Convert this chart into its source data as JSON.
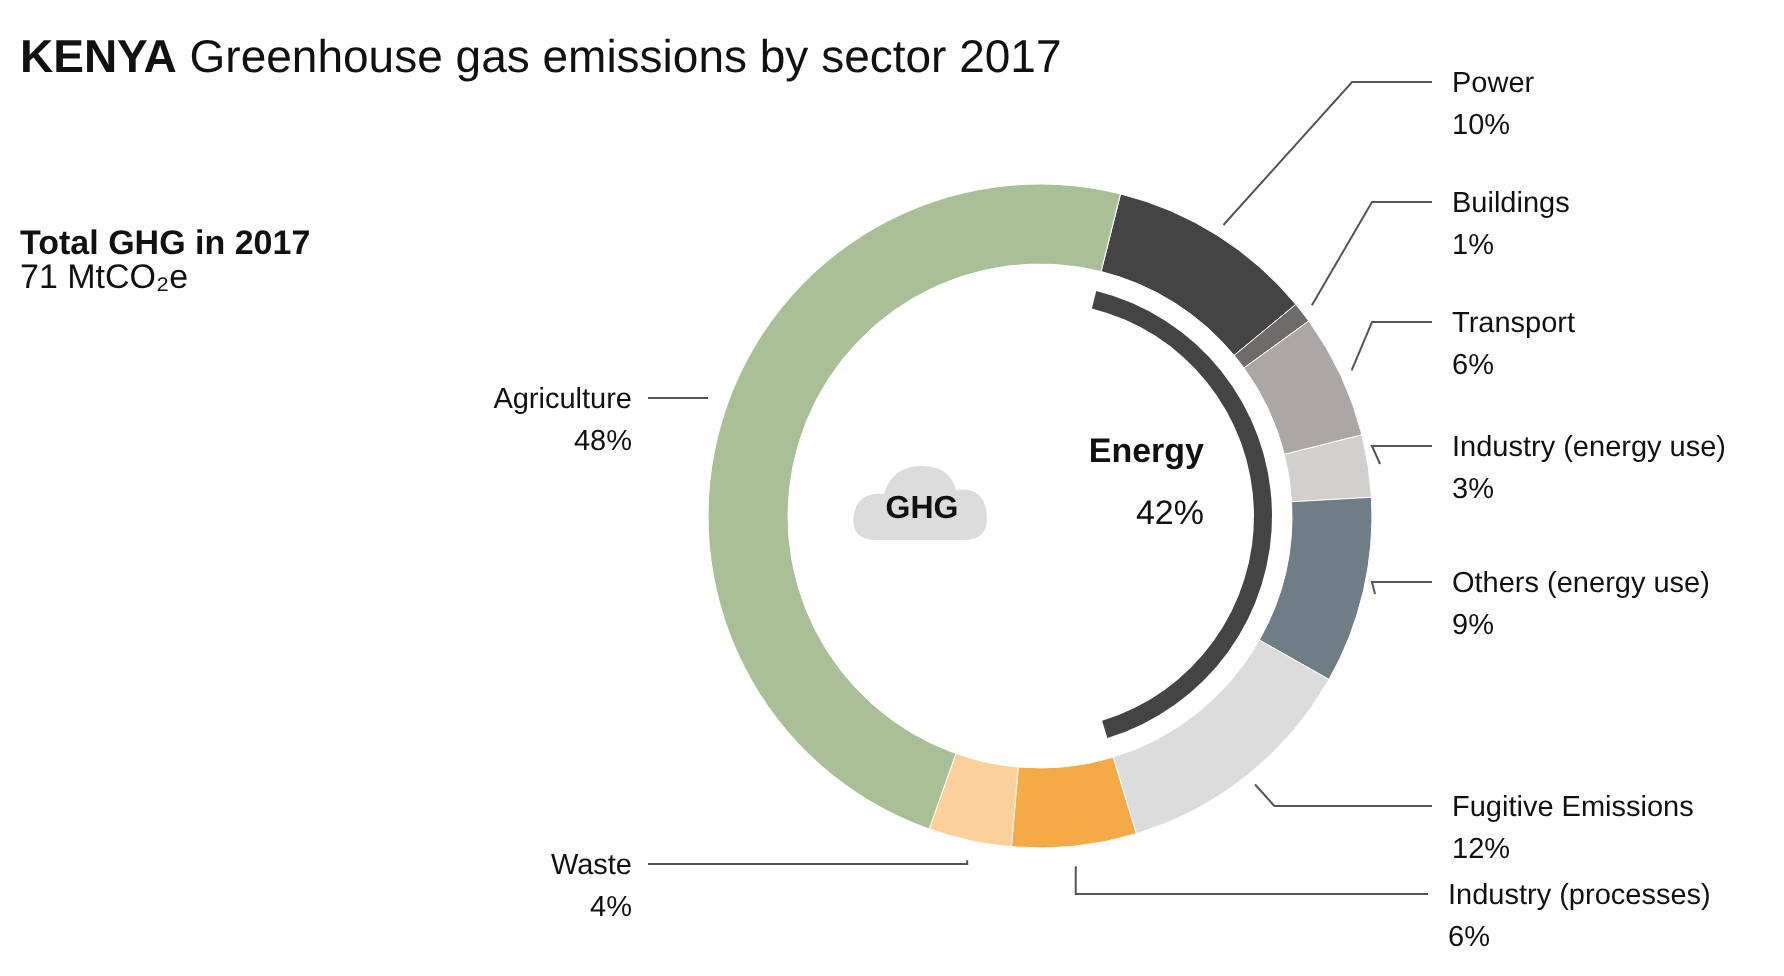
{
  "chart_data": {
    "type": "donut",
    "title": "KENYA Greenhouse gas emissions by sector 2017",
    "categories": [
      "Power",
      "Buildings",
      "Transport",
      "Industry (energy use)",
      "Others (energy use)",
      "Fugitive Emissions",
      "Industry (processes)",
      "Waste",
      "Agriculture"
    ],
    "values": [
      10,
      1,
      6,
      3,
      9,
      12,
      6,
      4,
      48
    ],
    "value_labels": [
      "10%",
      "1%",
      "6%",
      "3%",
      "9%",
      "12%",
      "6%",
      "4%",
      "48%"
    ],
    "colors": [
      "#444444",
      "#6f6b6b",
      "#aba7a6",
      "#d2d0ce",
      "#6f7d87",
      "#dcdcdc",
      "#f5a947",
      "#fbd09a",
      "#a9c096"
    ],
    "annotations": [
      "Total GHG in 2017",
      "71 MtCO₂e",
      "GHG",
      "Energy",
      "42%"
    ]
  }
}
